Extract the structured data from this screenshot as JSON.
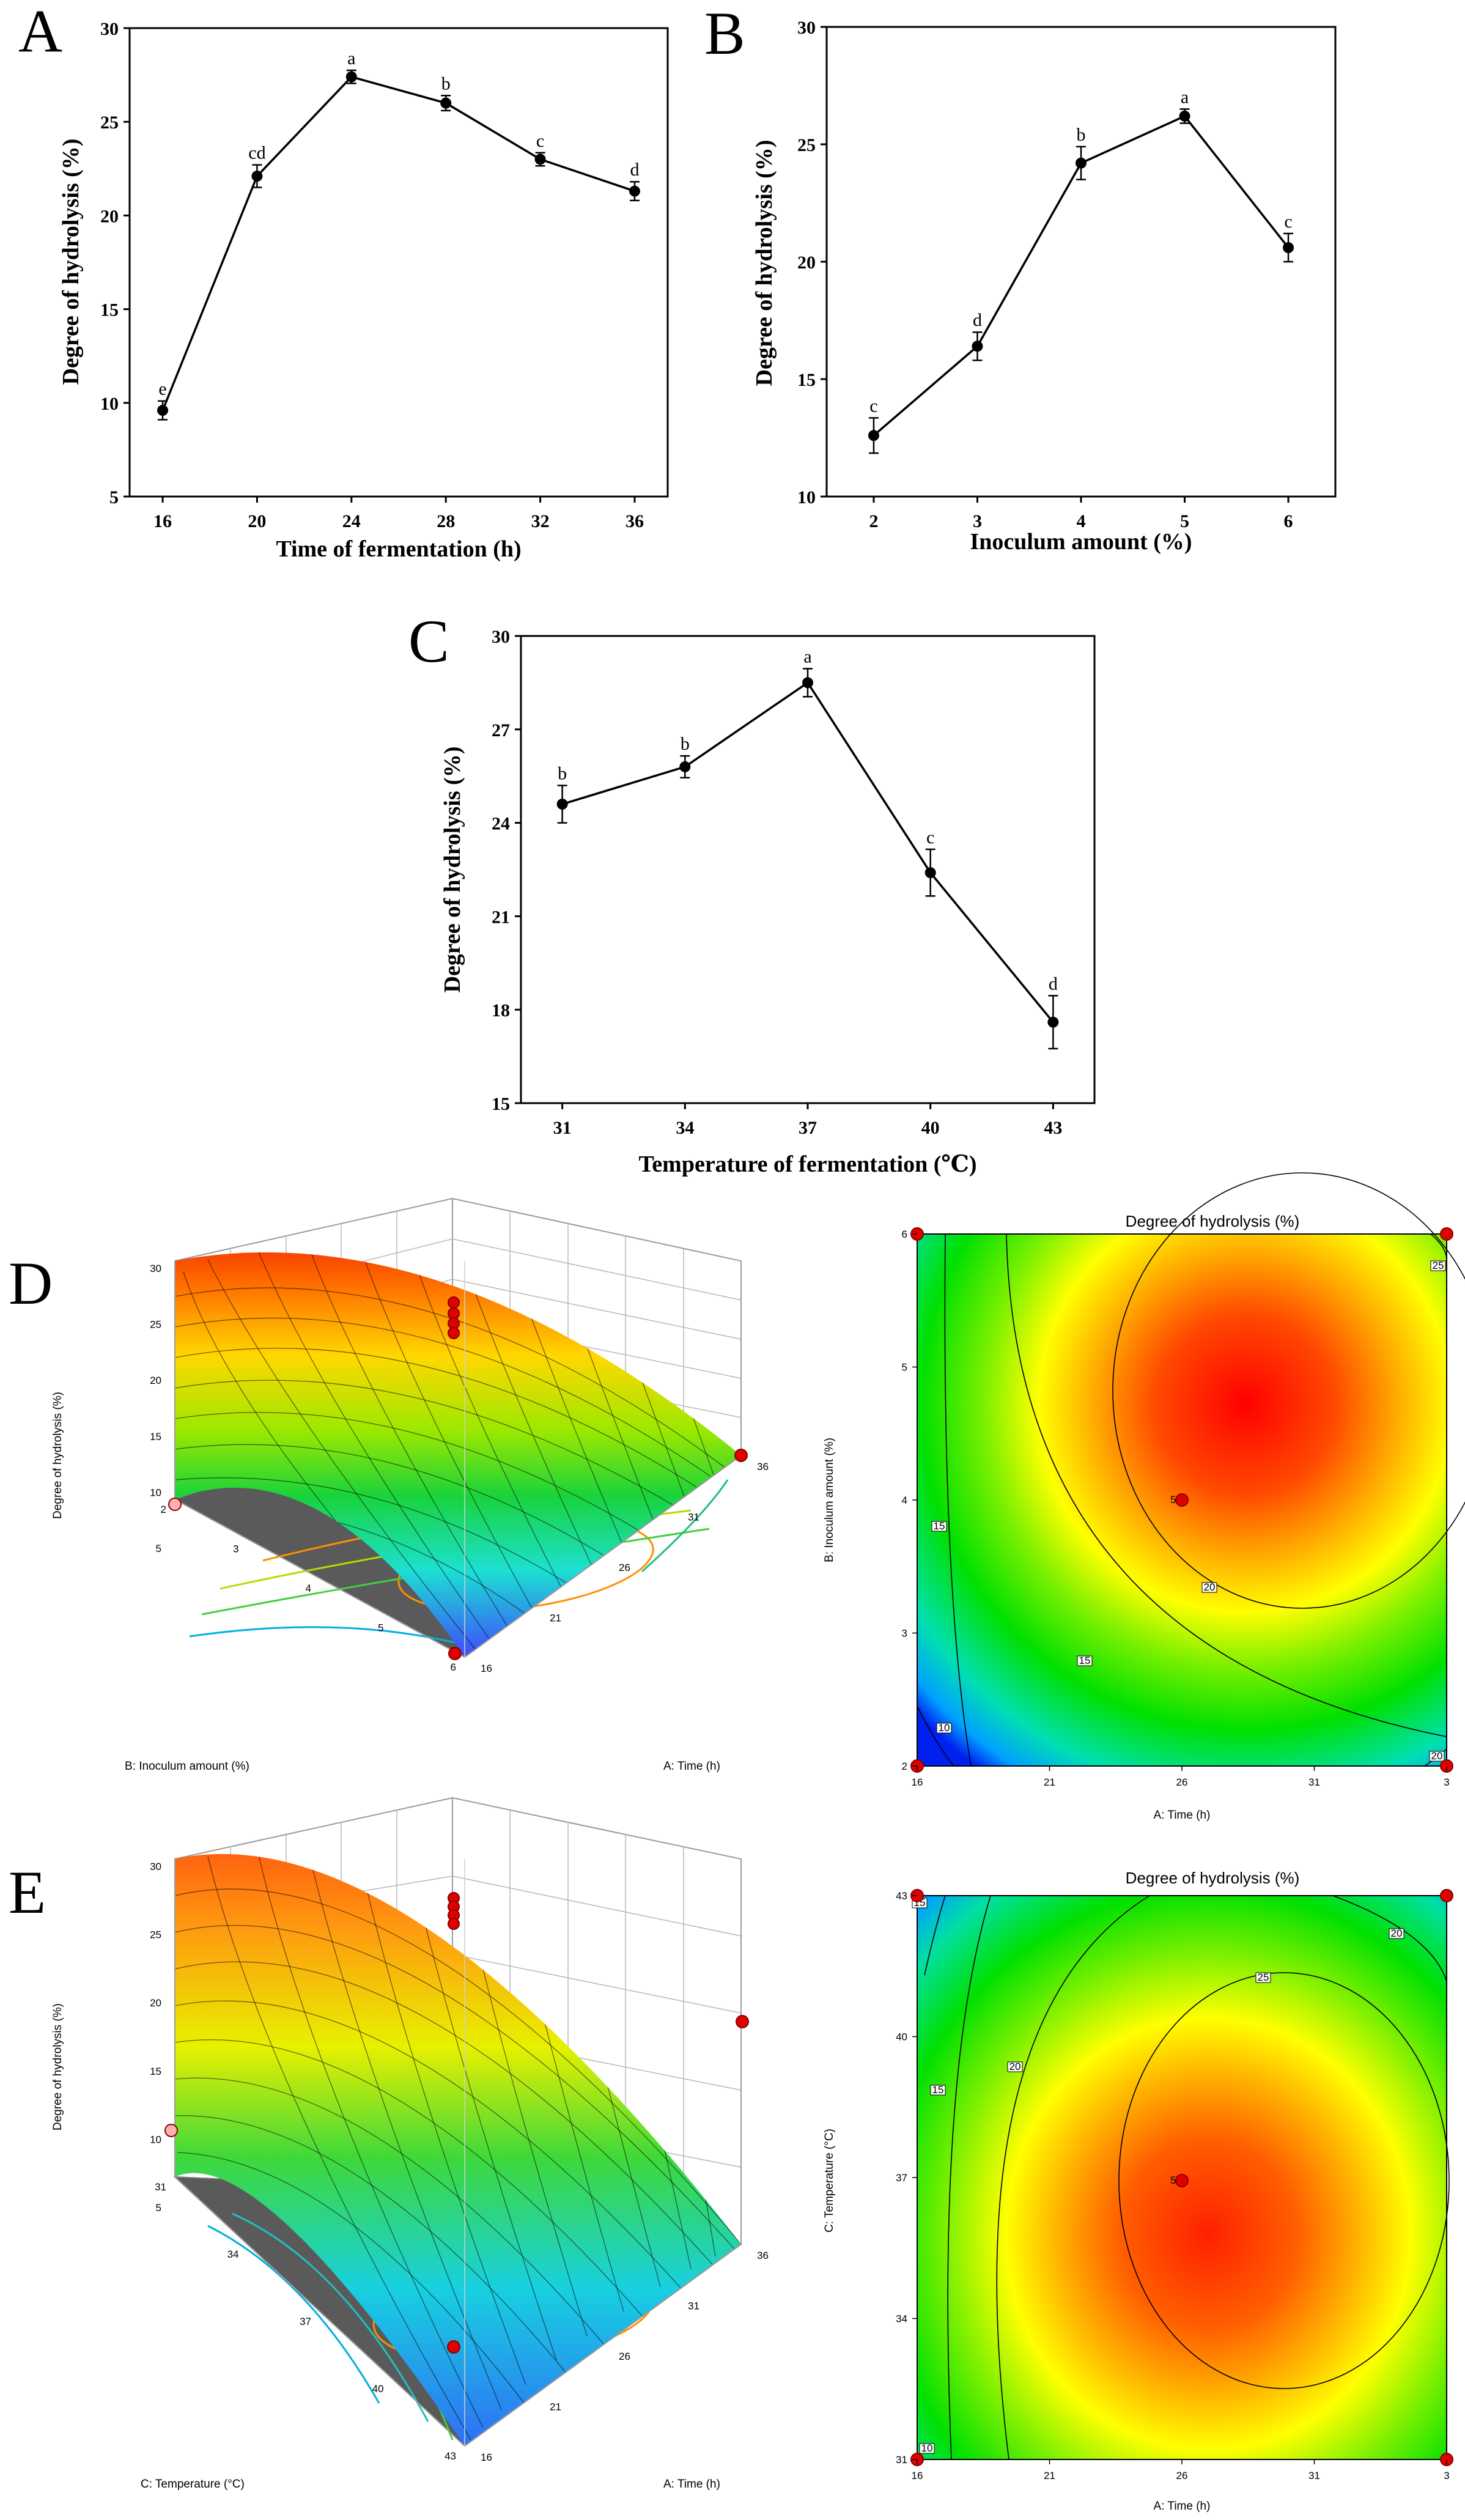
{
  "chart_data": [
    {
      "panel": "A",
      "type": "line",
      "categories": [
        "16",
        "20",
        "24",
        "28",
        "32",
        "36"
      ],
      "values": [
        9.6,
        22.1,
        27.4,
        26.0,
        23.0,
        21.3
      ],
      "errors": [
        0.5,
        0.6,
        0.35,
        0.4,
        0.35,
        0.5
      ],
      "significance": [
        "e",
        "cd",
        "a",
        "b",
        "c",
        "d"
      ],
      "xlabel": "Time of fermentation (h)",
      "ylabel": "Degree of hydrolysis (%)",
      "ylim": [
        5,
        30
      ],
      "yticks": [
        "5",
        "10",
        "15",
        "20",
        "25",
        "30"
      ]
    },
    {
      "panel": "B",
      "type": "line",
      "categories": [
        "2",
        "3",
        "4",
        "5",
        "6"
      ],
      "values": [
        12.6,
        16.4,
        24.2,
        26.2,
        20.6
      ],
      "errors": [
        0.75,
        0.6,
        0.7,
        0.3,
        0.6
      ],
      "significance": [
        "c",
        "d",
        "b",
        "a",
        "c"
      ],
      "xlabel": "Inoculum amount (%)",
      "ylabel": "Degree of hydrolysis (%)",
      "ylim": [
        10,
        30
      ],
      "yticks": [
        "10",
        "15",
        "20",
        "25",
        "30"
      ]
    },
    {
      "panel": "C",
      "type": "line",
      "categories": [
        "31",
        "34",
        "37",
        "40",
        "43"
      ],
      "values": [
        24.6,
        25.8,
        28.5,
        22.4,
        17.6
      ],
      "errors": [
        0.6,
        0.35,
        0.45,
        0.75,
        0.85
      ],
      "significance": [
        "b",
        "b",
        "a",
        "c",
        "d"
      ],
      "xlabel": "Temperature of fermentation (℃)",
      "ylabel": "Degree of hydrolysis (%)",
      "ylim": [
        15,
        30
      ],
      "yticks": [
        "15",
        "18",
        "21",
        "24",
        "27",
        "30"
      ]
    },
    {
      "panel": "D",
      "type": "surface-3d",
      "zlabel": "Degree of hydrolysis (%)",
      "xlabel": "A: Time (h)",
      "ylabel": "B: Inoculum amount (%)",
      "zticks": [
        "5",
        "10",
        "15",
        "20",
        "25",
        "30"
      ],
      "xticks": [
        "16",
        "21",
        "26",
        "31",
        "36"
      ],
      "yticks": [
        "2",
        "3",
        "4",
        "5",
        "6"
      ]
    },
    {
      "panel": "D",
      "type": "contour",
      "title": "Degree of hydrolysis (%)",
      "xlabel": "A: Time (h)",
      "ylabel": "B: Inoculum amount (%)",
      "xticks": [
        "16",
        "21",
        "26",
        "31",
        "3"
      ],
      "yticks": [
        "2",
        "3",
        "4",
        "5",
        "6"
      ],
      "contour_labels": [
        "25",
        "20",
        "15",
        "10",
        "15",
        "20"
      ],
      "center_point": {
        "x": 26,
        "y": 4,
        "label": "5"
      }
    },
    {
      "panel": "E",
      "type": "surface-3d",
      "zlabel": "Degree of hydrolysis (%)",
      "xlabel": "A: Time (h)",
      "ylabel": "C: Temperature (°C)",
      "zticks": [
        "5",
        "10",
        "15",
        "20",
        "25",
        "30"
      ],
      "xticks": [
        "16",
        "21",
        "26",
        "31",
        "36"
      ],
      "yticks": [
        "31",
        "34",
        "37",
        "40",
        "43"
      ]
    },
    {
      "panel": "E",
      "type": "contour",
      "title": "Degree of hydrolysis (%)",
      "xlabel": "A: Time (h)",
      "ylabel": "C: Temperature (°C)",
      "xticks": [
        "16",
        "21",
        "26",
        "31",
        "3"
      ],
      "yticks": [
        "31",
        "34",
        "37",
        "40",
        "43"
      ],
      "contour_labels": [
        "20",
        "25",
        "20",
        "15",
        "15",
        "10"
      ],
      "center_point": {
        "x": 26,
        "y": 37,
        "label": "5"
      }
    }
  ]
}
